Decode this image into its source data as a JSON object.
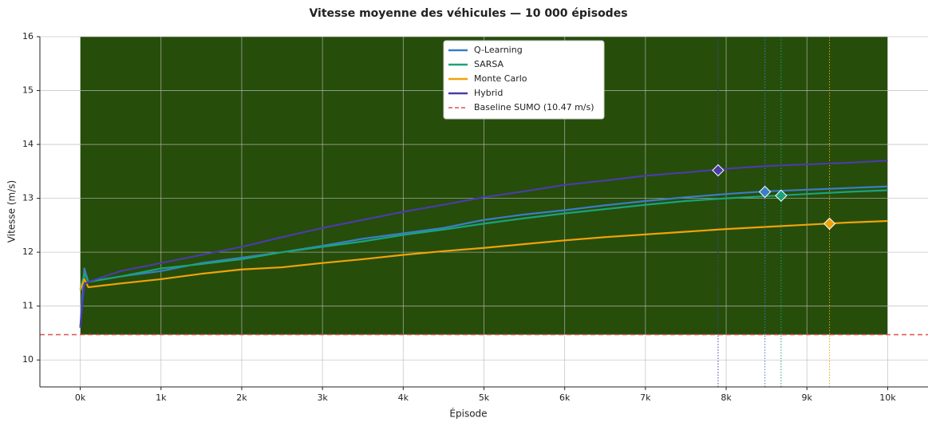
{
  "chart_data": {
    "type": "line",
    "title": "Vitesse moyenne des véhicules — 10 000 épisodes",
    "x_label": "Épisode",
    "y_label": "Vitesse (m/s)",
    "xlim": [
      -500,
      10500
    ],
    "ylim": [
      9.5,
      16
    ],
    "xticks": [
      {
        "value": 0,
        "label": "0k"
      },
      {
        "value": 1000,
        "label": "1k"
      },
      {
        "value": 2000,
        "label": "2k"
      },
      {
        "value": 3000,
        "label": "3k"
      },
      {
        "value": 4000,
        "label": "4k"
      },
      {
        "value": 5000,
        "label": "5k"
      },
      {
        "value": 6000,
        "label": "6k"
      },
      {
        "value": 7000,
        "label": "7k"
      },
      {
        "value": 8000,
        "label": "8k"
      },
      {
        "value": 9000,
        "label": "9k"
      },
      {
        "value": 10000,
        "label": "10k"
      }
    ],
    "yticks": [
      10,
      11,
      12,
      13,
      14,
      15,
      16
    ],
    "grid": true,
    "background_region": {
      "xlim": [
        0,
        10000
      ],
      "ylim": [
        10.47,
        16
      ],
      "color": "#264d0a"
    },
    "x": [
      0,
      50,
      100,
      500,
      1000,
      1500,
      2000,
      2500,
      3000,
      3500,
      4000,
      4500,
      5000,
      5500,
      6000,
      6500,
      7000,
      7500,
      8000,
      8500,
      9000,
      9500,
      10000
    ],
    "series": [
      {
        "name": "Q-Learning",
        "color": "#3a7dc9",
        "values": [
          10.6,
          11.7,
          11.45,
          11.55,
          11.65,
          11.8,
          11.9,
          12.0,
          12.12,
          12.25,
          12.35,
          12.45,
          12.6,
          12.7,
          12.78,
          12.87,
          12.95,
          13.02,
          13.08,
          13.13,
          13.16,
          13.19,
          13.22
        ],
        "marker": {
          "x": 8480,
          "y": 13.12
        }
      },
      {
        "name": "SARSA",
        "color": "#1aa37a",
        "values": [
          11.3,
          11.6,
          11.45,
          11.55,
          11.7,
          11.78,
          11.87,
          12.0,
          12.1,
          12.2,
          12.32,
          12.42,
          12.53,
          12.63,
          12.72,
          12.8,
          12.88,
          12.95,
          13.0,
          13.04,
          13.08,
          13.12,
          13.15
        ],
        "marker": {
          "x": 8680,
          "y": 13.05
        }
      },
      {
        "name": "Monte Carlo",
        "color": "#f0a20a",
        "values": [
          11.3,
          11.5,
          11.35,
          11.42,
          11.5,
          11.6,
          11.68,
          11.72,
          11.8,
          11.87,
          11.95,
          12.02,
          12.08,
          12.15,
          12.22,
          12.28,
          12.33,
          12.38,
          12.43,
          12.47,
          12.51,
          12.55,
          12.58
        ],
        "marker": {
          "x": 9280,
          "y": 12.53
        }
      },
      {
        "name": "Hybrid",
        "color": "#4b3ca8",
        "values": [
          10.6,
          11.4,
          11.45,
          11.65,
          11.8,
          11.95,
          12.1,
          12.28,
          12.45,
          12.6,
          12.75,
          12.88,
          13.02,
          13.13,
          13.25,
          13.33,
          13.42,
          13.48,
          13.55,
          13.6,
          13.63,
          13.66,
          13.7
        ],
        "marker": {
          "x": 7900,
          "y": 13.52
        }
      }
    ],
    "baseline": {
      "name": "Baseline SUMO (10.47 m/s)",
      "value": 10.47,
      "color": "#e05050"
    },
    "legend": "upper center"
  }
}
